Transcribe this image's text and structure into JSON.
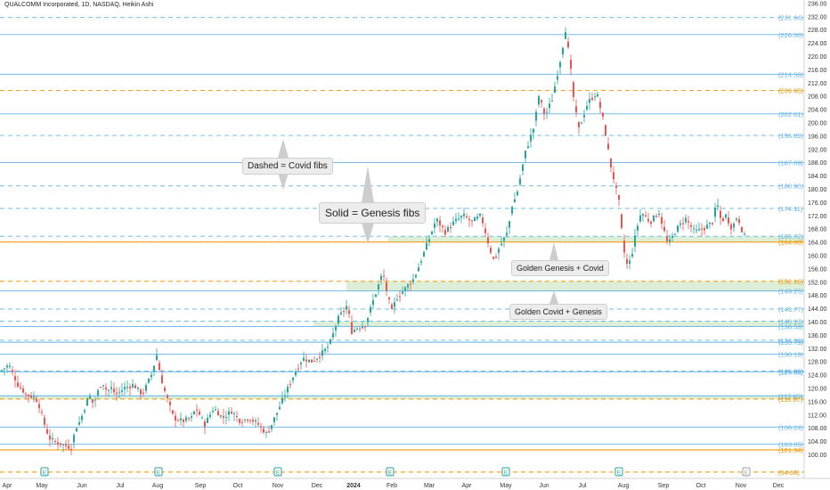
{
  "header": {
    "title": "QUALCOMM Incorporated, 1D, NASDAQ, Heikin Ashi"
  },
  "annotations": {
    "dashed_note": "Dashed = Covid fibs",
    "solid_note": "Solid = Genesis fibs",
    "golden_genesis_covid": "Golden Genesis + Covid",
    "golden_covid_genesis": "Golden Covid + Genesis"
  },
  "colors": {
    "up": "#26a69a",
    "down": "#ef5350",
    "genesis_line": "#5fb3e8",
    "covid_line": "#5fb3e8",
    "golden_line": "#f5a623",
    "golden_text": "#e69500",
    "zone_fill": "#dcefd6",
    "axis_text": "#333333"
  },
  "chart_data": {
    "type": "candlestick",
    "style": "Heikin Ashi",
    "interval": "1D",
    "exchange": "NASDAQ",
    "ylim": [
      97,
      238
    ],
    "y_ticks": [
      100,
      104,
      108,
      112,
      116,
      120,
      124,
      128,
      132,
      136,
      140,
      144,
      148,
      152,
      156,
      160,
      164,
      168,
      172,
      176,
      180,
      184,
      188,
      192,
      196,
      200,
      204,
      208,
      212,
      216,
      220,
      224,
      228,
      232,
      236
    ],
    "x_ticks": [
      "Apr",
      "May",
      "Jun",
      "Jul",
      "Aug",
      "Sep",
      "Oct",
      "Nov",
      "Dec",
      "2024",
      "Feb",
      "Mar",
      "Apr",
      "May",
      "Jun",
      "Jul",
      "Aug",
      "Sep",
      "Oct",
      "Nov",
      "Dec"
    ],
    "fib_levels": [
      {
        "value": 231.64,
        "label": "(231.64)",
        "set": "covid"
      },
      {
        "value": 226.5,
        "label": "(226.50)",
        "set": "genesis"
      },
      {
        "value": 214.56,
        "label": "(214.56)",
        "set": "genesis"
      },
      {
        "value": 209.65,
        "label": "(209.65)",
        "set": "golden-covid"
      },
      {
        "value": 202.61,
        "label": "(202.61)",
        "set": "genesis"
      },
      {
        "value": 196.09,
        "label": "(196.09)",
        "set": "covid"
      },
      {
        "value": 187.89,
        "label": "(187.89)",
        "set": "genesis"
      },
      {
        "value": 180.9,
        "label": "(180.90)",
        "set": "covid"
      },
      {
        "value": 174.11,
        "label": "(174.11)",
        "set": "covid"
      },
      {
        "value": 165.72,
        "label": "(165.72)",
        "set": "covid"
      },
      {
        "value": 164.0,
        "label": "(164.00)",
        "set": "golden-genesis"
      },
      {
        "value": 152.16,
        "label": "(152.16)",
        "set": "golden-covid"
      },
      {
        "value": 149.25,
        "label": "(149.25)",
        "set": "genesis"
      },
      {
        "value": 143.77,
        "label": "(143.77)",
        "set": "covid"
      },
      {
        "value": 140.13,
        "label": "(140.13)",
        "set": "covid"
      },
      {
        "value": 138.53,
        "label": "(138.53)",
        "set": "genesis"
      },
      {
        "value": 134.39,
        "label": "(134.39)",
        "set": "covid"
      },
      {
        "value": 133.79,
        "label": "(133.79)",
        "set": "genesis"
      },
      {
        "value": 130.19,
        "label": "(130.19)",
        "set": "genesis"
      },
      {
        "value": 125.08,
        "label": "(125.08)",
        "set": "covid"
      },
      {
        "value": 124.88,
        "label": "(124.88)",
        "set": "genesis"
      },
      {
        "value": 117.65,
        "label": "(117.65)",
        "set": "genesis"
      },
      {
        "value": 116.67,
        "label": "(116.67)",
        "set": "golden-covid"
      },
      {
        "value": 108.24,
        "label": "(108.24)",
        "set": "genesis"
      },
      {
        "value": 103.05,
        "label": "(103.05)",
        "set": "genesis"
      },
      {
        "value": 101.34,
        "label": "(101.34)",
        "set": "golden-genesis"
      },
      {
        "value": 94.66,
        "label": "(94.66)",
        "set": "golden-covid"
      }
    ],
    "zones": [
      {
        "from": 164.0,
        "to": 165.72,
        "start": "2024-01-01"
      },
      {
        "from": 149.25,
        "to": 152.16,
        "start": "2023-12-01"
      },
      {
        "from": 138.53,
        "to": 140.13,
        "start": "2023-11-15"
      },
      {
        "from": 116.67,
        "to": 117.65,
        "start": "2023-04-01"
      }
    ],
    "price_path": [
      [
        0,
        125
      ],
      [
        10,
        127
      ],
      [
        20,
        121
      ],
      [
        30,
        118
      ],
      [
        40,
        117
      ],
      [
        45,
        114
      ],
      [
        50,
        109
      ],
      [
        55,
        105
      ],
      [
        60,
        104
      ],
      [
        70,
        103
      ],
      [
        80,
        102
      ],
      [
        85,
        108
      ],
      [
        90,
        110
      ],
      [
        95,
        114
      ],
      [
        100,
        118
      ],
      [
        105,
        115
      ],
      [
        110,
        119
      ],
      [
        115,
        122
      ],
      [
        120,
        119
      ],
      [
        125,
        120
      ],
      [
        130,
        118
      ],
      [
        140,
        120
      ],
      [
        150,
        121
      ],
      [
        160,
        118
      ],
      [
        170,
        124
      ],
      [
        176,
        130
      ],
      [
        180,
        124
      ],
      [
        185,
        119
      ],
      [
        195,
        111
      ],
      [
        205,
        110
      ],
      [
        215,
        111
      ],
      [
        220,
        114
      ],
      [
        230,
        109
      ],
      [
        240,
        114
      ],
      [
        250,
        111
      ],
      [
        260,
        113
      ],
      [
        270,
        110
      ],
      [
        280,
        111
      ],
      [
        290,
        109
      ],
      [
        300,
        106
      ],
      [
        305,
        109
      ],
      [
        310,
        112
      ],
      [
        320,
        118
      ],
      [
        330,
        124
      ],
      [
        340,
        129
      ],
      [
        350,
        128
      ],
      [
        360,
        130
      ],
      [
        370,
        133
      ],
      [
        380,
        141
      ],
      [
        390,
        145
      ],
      [
        395,
        137
      ],
      [
        400,
        138
      ],
      [
        410,
        139
      ],
      [
        420,
        147
      ],
      [
        430,
        155
      ],
      [
        435,
        148
      ],
      [
        440,
        143
      ],
      [
        445,
        147
      ],
      [
        455,
        150
      ],
      [
        465,
        153
      ],
      [
        475,
        160
      ],
      [
        482,
        165
      ],
      [
        490,
        171
      ],
      [
        500,
        167
      ],
      [
        510,
        170
      ],
      [
        520,
        172
      ],
      [
        530,
        170
      ],
      [
        540,
        172
      ],
      [
        550,
        162
      ],
      [
        555,
        158
      ],
      [
        560,
        162
      ],
      [
        570,
        167
      ],
      [
        575,
        175
      ],
      [
        580,
        178
      ],
      [
        590,
        191
      ],
      [
        600,
        199
      ],
      [
        605,
        208
      ],
      [
        612,
        202
      ],
      [
        620,
        207
      ],
      [
        630,
        220
      ],
      [
        635,
        228
      ],
      [
        640,
        218
      ],
      [
        645,
        205
      ],
      [
        650,
        198
      ],
      [
        660,
        206
      ],
      [
        670,
        209
      ],
      [
        678,
        200
      ],
      [
        685,
        188
      ],
      [
        695,
        176
      ],
      [
        700,
        162
      ],
      [
        705,
        156
      ],
      [
        710,
        161
      ],
      [
        715,
        168
      ],
      [
        720,
        173
      ],
      [
        730,
        170
      ],
      [
        740,
        173
      ],
      [
        750,
        163
      ],
      [
        760,
        168
      ],
      [
        770,
        171
      ],
      [
        780,
        167
      ],
      [
        790,
        168
      ],
      [
        800,
        170
      ],
      [
        805,
        176
      ],
      [
        810,
        170
      ],
      [
        815,
        172
      ],
      [
        822,
        168
      ],
      [
        828,
        172
      ],
      [
        835,
        166
      ],
      [
        838,
        165
      ]
    ],
    "earnings_markers": [
      "E",
      "E",
      "E",
      "E",
      "E",
      "E",
      "E"
    ]
  }
}
